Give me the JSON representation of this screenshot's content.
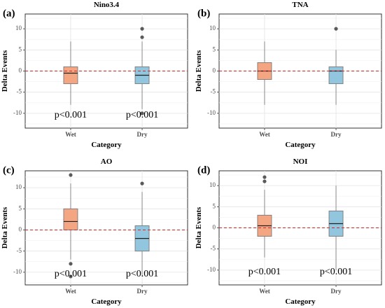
{
  "chart_data": [
    {
      "type": "box",
      "panel_label": "(a)",
      "title": "Nino3.4",
      "xlabel": "Category",
      "ylabel": "Delta Events",
      "categories": [
        "Wet",
        "Dry"
      ],
      "ylim": [
        -13.5,
        13.5
      ],
      "yticks": [
        -10,
        -5,
        0,
        5,
        10
      ],
      "reference_line": 0,
      "boxes": [
        {
          "category": "Wet",
          "whisker_low": -8,
          "q1": -3,
          "median": -0.5,
          "q3": 1,
          "whisker_high": 7,
          "outliers": [],
          "color": "#f4a582"
        },
        {
          "category": "Dry",
          "whisker_low": -9,
          "q1": -3,
          "median": -1,
          "q3": 1,
          "whisker_high": 7,
          "outliers": [
            10,
            8,
            -10
          ],
          "color": "#92c5de"
        }
      ],
      "annotations": [
        "p<0.001",
        "p<0.001"
      ]
    },
    {
      "type": "box",
      "panel_label": "(b)",
      "title": "TNA",
      "xlabel": "Category",
      "ylabel": "Delta Events",
      "categories": [
        "Wet",
        "Dry"
      ],
      "ylim": [
        -13.5,
        13.5
      ],
      "yticks": [
        -10,
        -5,
        0,
        5,
        10
      ],
      "reference_line": 0,
      "boxes": [
        {
          "category": "Wet",
          "whisker_low": -8,
          "q1": -2,
          "median": 0,
          "q3": 2,
          "whisker_high": 7,
          "outliers": [],
          "color": "#f4a582"
        },
        {
          "category": "Dry",
          "whisker_low": -8,
          "q1": -3,
          "median": 0,
          "q3": 1,
          "whisker_high": 5,
          "outliers": [
            10
          ],
          "color": "#92c5de"
        }
      ],
      "annotations": []
    },
    {
      "type": "box",
      "panel_label": "(c)",
      "title": "AO",
      "xlabel": "Category",
      "ylabel": "Delta Events",
      "categories": [
        "Wet",
        "Dry"
      ],
      "ylim": [
        -13,
        14
      ],
      "yticks": [
        -10,
        -5,
        0,
        5,
        10
      ],
      "reference_line": 0,
      "boxes": [
        {
          "category": "Wet",
          "whisker_low": -7,
          "q1": 0,
          "median": 2,
          "q3": 5,
          "whisker_high": 11,
          "outliers": [
            13,
            -8,
            -11
          ],
          "color": "#f4a582"
        },
        {
          "category": "Dry",
          "whisker_low": -11,
          "q1": -5,
          "median": -2,
          "q3": 1,
          "whisker_high": 9,
          "outliers": [
            11
          ],
          "color": "#92c5de"
        }
      ],
      "annotations": [
        "p<0.001",
        "p<0.001"
      ]
    },
    {
      "type": "box",
      "panel_label": "(d)",
      "title": "NOI",
      "xlabel": "Category",
      "ylabel": "Delta Events",
      "categories": [
        "Wet",
        "Dry"
      ],
      "ylim": [
        -13.5,
        13.5
      ],
      "yticks": [
        -10,
        -5,
        0,
        5,
        10
      ],
      "reference_line": 0,
      "boxes": [
        {
          "category": "Wet",
          "whisker_low": -7,
          "q1": -2,
          "median": 0.5,
          "q3": 3,
          "whisker_high": 9,
          "outliers": [
            12,
            11
          ],
          "color": "#f4a582"
        },
        {
          "category": "Dry",
          "whisker_low": -10,
          "q1": -2,
          "median": 1,
          "q3": 4,
          "whisker_high": 10,
          "outliers": [],
          "color": "#92c5de"
        }
      ],
      "annotations": [
        "p<0.001",
        "p<0.001"
      ]
    }
  ]
}
